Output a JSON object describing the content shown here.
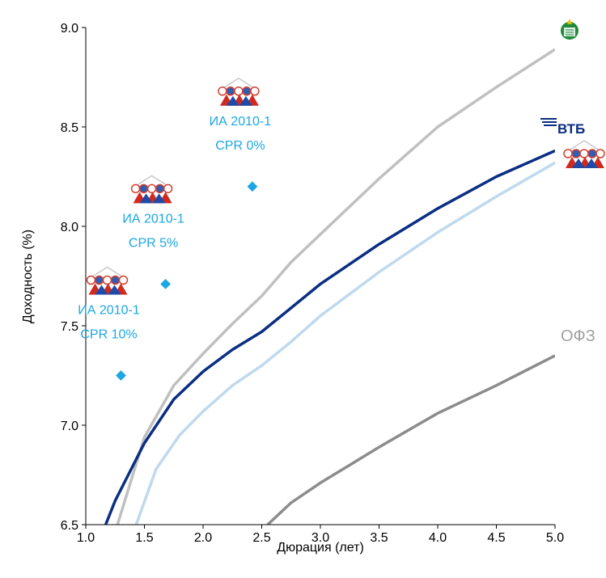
{
  "chart_data": {
    "type": "scatter",
    "xlabel": "Дюрация (лет)",
    "ylabel": "Доходность (%)",
    "xlim": [
      1.0,
      5.0
    ],
    "ylim": [
      6.5,
      9.0
    ],
    "x_ticks": [
      "1.0",
      "1.5",
      "2.0",
      "2.5",
      "3.0",
      "3.5",
      "4.0",
      "4.5",
      "5.0"
    ],
    "y_ticks": [
      "6.5",
      "7.0",
      "7.5",
      "8.0",
      "8.5",
      "9.0"
    ],
    "grid": false,
    "series": [
      {
        "key": "rshb",
        "color": "#c0c0c0",
        "points": [
          [
            1.27,
            6.5
          ],
          [
            1.5,
            6.94
          ],
          [
            1.75,
            7.2
          ],
          [
            2.0,
            7.36
          ],
          [
            2.25,
            7.51
          ],
          [
            2.5,
            7.65
          ],
          [
            2.75,
            7.82
          ],
          [
            3.0,
            7.96
          ],
          [
            3.5,
            8.24
          ],
          [
            4.0,
            8.5
          ],
          [
            4.5,
            8.7
          ],
          [
            5.0,
            8.89
          ]
        ]
      },
      {
        "key": "vtb",
        "color": "#0a2e82",
        "points": [
          [
            1.17,
            6.5
          ],
          [
            1.25,
            6.62
          ],
          [
            1.5,
            6.91
          ],
          [
            1.75,
            7.13
          ],
          [
            2.0,
            7.27
          ],
          [
            2.25,
            7.38
          ],
          [
            2.5,
            7.47
          ],
          [
            2.75,
            7.59
          ],
          [
            3.0,
            7.71
          ],
          [
            3.5,
            7.91
          ],
          [
            4.0,
            8.09
          ],
          [
            4.5,
            8.25
          ],
          [
            5.0,
            8.38
          ]
        ]
      },
      {
        "key": "aijk",
        "color": "#bfd9ee",
        "points": [
          [
            1.43,
            6.5
          ],
          [
            1.6,
            6.78
          ],
          [
            1.8,
            6.95
          ],
          [
            2.0,
            7.07
          ],
          [
            2.25,
            7.2
          ],
          [
            2.5,
            7.3
          ],
          [
            2.75,
            7.42
          ],
          [
            3.0,
            7.55
          ],
          [
            3.5,
            7.77
          ],
          [
            4.0,
            7.97
          ],
          [
            4.5,
            8.15
          ],
          [
            5.0,
            8.32
          ]
        ]
      },
      {
        "key": "ofz",
        "name": "ОФЗ",
        "color": "#8c8c8c",
        "points": [
          [
            2.55,
            6.5
          ],
          [
            2.75,
            6.61
          ],
          [
            3.0,
            6.71
          ],
          [
            3.25,
            6.8
          ],
          [
            3.5,
            6.89
          ],
          [
            4.0,
            7.06
          ],
          [
            4.5,
            7.2
          ],
          [
            5.0,
            7.35
          ]
        ]
      }
    ],
    "points": [
      {
        "x": 1.3,
        "y": 7.25,
        "label_line1": "ИА 2010-1",
        "label_line2": "CPR 10%"
      },
      {
        "x": 1.68,
        "y": 7.71,
        "label_line1": "ИА 2010-1",
        "label_line2": "CPR 5%"
      },
      {
        "x": 2.42,
        "y": 8.2,
        "label_line1": "ИА 2010-1",
        "label_line2": "CPR 0%"
      }
    ],
    "point_color": "#1ba7e3",
    "series_labels": {
      "ofz": "ОФЗ",
      "vtb": "ВТБ"
    },
    "logos": [
      "rshb-logo",
      "vtb-logo",
      "aijk-logo"
    ]
  }
}
